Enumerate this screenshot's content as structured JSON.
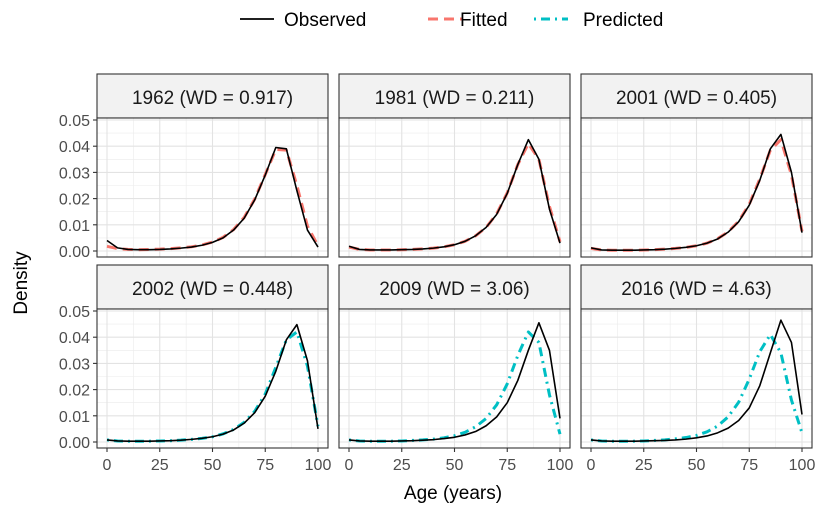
{
  "chart_data": {
    "type": "line",
    "xlabel": "Age (years)",
    "ylabel": "Density",
    "xlim": [
      0,
      100
    ],
    "ylim": [
      0,
      0.05
    ],
    "x_ticks": [
      0,
      25,
      50,
      75,
      100
    ],
    "y_ticks": [
      0.0,
      0.01,
      0.02,
      0.03,
      0.04,
      0.05
    ],
    "y_tick_labels": [
      "0.00",
      "0.01",
      "0.02",
      "0.03",
      "0.04",
      "0.05"
    ],
    "grid": true,
    "legend_position": "top",
    "legend": [
      {
        "name": "Observed",
        "color": "#000000",
        "dash": "solid"
      },
      {
        "name": "Fitted",
        "color": "#F8766D",
        "dash": "dashed"
      },
      {
        "name": "Predicted",
        "color": "#00BFC4",
        "dash": "dotdash"
      }
    ],
    "x": [
      0,
      5,
      10,
      15,
      20,
      25,
      30,
      35,
      40,
      45,
      50,
      55,
      60,
      65,
      70,
      75,
      80,
      85,
      90,
      95,
      100
    ],
    "panels": [
      {
        "title": "1962 (WD = 0.917)",
        "series": [
          {
            "name": "Observed",
            "values": [
              0.004,
              0.0012,
              0.0006,
              0.0005,
              0.0005,
              0.0006,
              0.0008,
              0.0011,
              0.0015,
              0.0022,
              0.0033,
              0.005,
              0.008,
              0.0125,
              0.0195,
              0.029,
              0.0395,
              0.039,
              0.023,
              0.008,
              0.0015
            ]
          },
          {
            "name": "Fitted",
            "values": [
              0.0018,
              0.0009,
              0.0006,
              0.0005,
              0.0006,
              0.0007,
              0.0009,
              0.0012,
              0.0016,
              0.0023,
              0.0034,
              0.0052,
              0.0082,
              0.0128,
              0.0198,
              0.0292,
              0.0388,
              0.0385,
              0.025,
              0.0095,
              0.002
            ]
          }
        ]
      },
      {
        "title": "1981 (WD = 0.211)",
        "series": [
          {
            "name": "Observed",
            "values": [
              0.0018,
              0.0006,
              0.0004,
              0.0004,
              0.0004,
              0.0005,
              0.0006,
              0.0008,
              0.0011,
              0.0016,
              0.0024,
              0.0037,
              0.0058,
              0.009,
              0.014,
              0.022,
              0.033,
              0.0425,
              0.035,
              0.016,
              0.003
            ]
          },
          {
            "name": "Fitted",
            "values": [
              0.0015,
              0.0006,
              0.0004,
              0.0004,
              0.0004,
              0.0005,
              0.0006,
              0.0008,
              0.0011,
              0.0016,
              0.0024,
              0.0037,
              0.0058,
              0.009,
              0.0142,
              0.0222,
              0.033,
              0.041,
              0.035,
              0.017,
              0.0035
            ]
          }
        ]
      },
      {
        "title": "2001 (WD = 0.405)",
        "series": [
          {
            "name": "Observed",
            "values": [
              0.0012,
              0.0004,
              0.0003,
              0.0003,
              0.0003,
              0.0004,
              0.0005,
              0.0007,
              0.001,
              0.0014,
              0.002,
              0.003,
              0.0046,
              0.0072,
              0.0112,
              0.0175,
              0.027,
              0.039,
              0.0445,
              0.03,
              0.007
            ]
          },
          {
            "name": "Fitted",
            "values": [
              0.001,
              0.0004,
              0.0003,
              0.0003,
              0.0003,
              0.0004,
              0.0005,
              0.0007,
              0.001,
              0.0014,
              0.002,
              0.003,
              0.0047,
              0.0073,
              0.0114,
              0.0178,
              0.0275,
              0.0385,
              0.0425,
              0.029,
              0.0075
            ]
          }
        ]
      },
      {
        "title": "2002 (WD = 0.448)",
        "series": [
          {
            "name": "Observed",
            "values": [
              0.0008,
              0.0004,
              0.0003,
              0.0003,
              0.0003,
              0.0004,
              0.0005,
              0.0007,
              0.001,
              0.0014,
              0.002,
              0.003,
              0.0046,
              0.0072,
              0.0112,
              0.0175,
              0.027,
              0.039,
              0.0448,
              0.031,
              0.005
            ]
          },
          {
            "name": "Predicted",
            "values": [
              0.0008,
              0.0004,
              0.0003,
              0.0003,
              0.0003,
              0.0004,
              0.0005,
              0.0007,
              0.001,
              0.0014,
              0.002,
              0.0031,
              0.0048,
              0.0075,
              0.0117,
              0.0183,
              0.0285,
              0.039,
              0.042,
              0.029,
              0.006
            ]
          }
        ]
      },
      {
        "title": "2009 (WD = 3.06)",
        "series": [
          {
            "name": "Observed",
            "values": [
              0.0008,
              0.0004,
              0.0003,
              0.0003,
              0.0003,
              0.0004,
              0.0005,
              0.0007,
              0.0009,
              0.0013,
              0.0018,
              0.0027,
              0.004,
              0.0062,
              0.0096,
              0.015,
              0.0235,
              0.035,
              0.0455,
              0.035,
              0.009
            ]
          },
          {
            "name": "Predicted",
            "values": [
              0.0008,
              0.0004,
              0.0003,
              0.0003,
              0.0003,
              0.0004,
              0.0006,
              0.0008,
              0.0011,
              0.0016,
              0.0024,
              0.0037,
              0.0058,
              0.009,
              0.0142,
              0.0222,
              0.033,
              0.042,
              0.038,
              0.018,
              0.003
            ]
          }
        ]
      },
      {
        "title": "2016 (WD = 4.63)",
        "series": [
          {
            "name": "Observed",
            "values": [
              0.0008,
              0.0004,
              0.0003,
              0.0003,
              0.0003,
              0.0004,
              0.0005,
              0.0006,
              0.0008,
              0.0011,
              0.0016,
              0.0023,
              0.0035,
              0.0053,
              0.0082,
              0.013,
              0.0215,
              0.034,
              0.0465,
              0.038,
              0.0105
            ]
          },
          {
            "name": "Predicted",
            "values": [
              0.0008,
              0.0004,
              0.0003,
              0.0003,
              0.0003,
              0.0004,
              0.0006,
              0.0008,
              0.0012,
              0.0017,
              0.0025,
              0.0039,
              0.0061,
              0.0096,
              0.0152,
              0.024,
              0.0345,
              0.041,
              0.034,
              0.016,
              0.0035
            ]
          }
        ]
      }
    ]
  }
}
